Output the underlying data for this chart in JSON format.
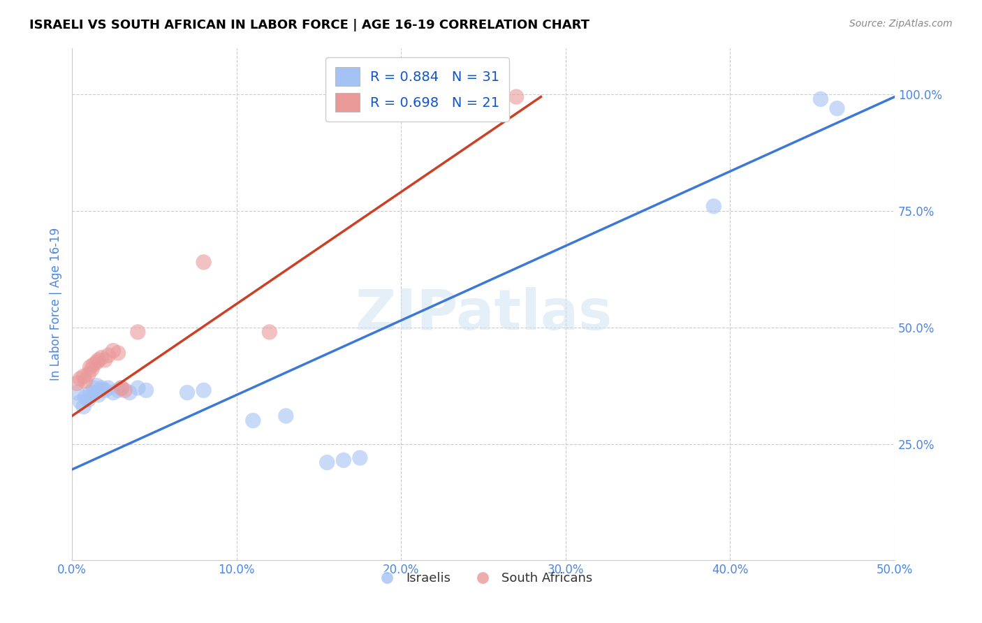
{
  "title": "ISRAELI VS SOUTH AFRICAN IN LABOR FORCE | AGE 16-19 CORRELATION CHART",
  "source": "Source: ZipAtlas.com",
  "ylabel": "In Labor Force | Age 16-19",
  "watermark": "ZIPatlas",
  "xlim": [
    0.0,
    0.5
  ],
  "ylim": [
    0.0,
    1.1
  ],
  "xticks": [
    0.0,
    0.1,
    0.2,
    0.3,
    0.4,
    0.5
  ],
  "yticks": [
    0.25,
    0.5,
    0.75,
    1.0
  ],
  "ytick_labels": [
    "25.0%",
    "50.0%",
    "75.0%",
    "100.0%"
  ],
  "xtick_labels": [
    "0.0%",
    "10.0%",
    "20.0%",
    "30.0%",
    "40.0%",
    "50.0%"
  ],
  "blue_R": 0.884,
  "blue_N": 31,
  "pink_R": 0.698,
  "pink_N": 21,
  "blue_color": "#a4c2f4",
  "pink_color": "#ea9999",
  "blue_line_color": "#3c78d8",
  "pink_line_color": "#cc4125",
  "legend_R_color": "#1155cc",
  "grid_color": "#cccccc",
  "background_color": "#ffffff",
  "title_color": "#000000",
  "axis_label_color": "#4a86e8",
  "israelis_points": [
    [
      0.003,
      0.36
    ],
    [
      0.005,
      0.34
    ],
    [
      0.007,
      0.33
    ],
    [
      0.008,
      0.35
    ],
    [
      0.01,
      0.345
    ],
    [
      0.011,
      0.36
    ],
    [
      0.012,
      0.355
    ],
    [
      0.013,
      0.37
    ],
    [
      0.014,
      0.36
    ],
    [
      0.015,
      0.375
    ],
    [
      0.016,
      0.355
    ],
    [
      0.017,
      0.365
    ],
    [
      0.018,
      0.37
    ],
    [
      0.02,
      0.365
    ],
    [
      0.022,
      0.37
    ],
    [
      0.025,
      0.36
    ],
    [
      0.028,
      0.365
    ],
    [
      0.03,
      0.37
    ],
    [
      0.035,
      0.36
    ],
    [
      0.04,
      0.37
    ],
    [
      0.045,
      0.365
    ],
    [
      0.07,
      0.36
    ],
    [
      0.08,
      0.365
    ],
    [
      0.11,
      0.3
    ],
    [
      0.13,
      0.31
    ],
    [
      0.155,
      0.21
    ],
    [
      0.165,
      0.215
    ],
    [
      0.175,
      0.22
    ],
    [
      0.39,
      0.76
    ],
    [
      0.455,
      0.99
    ],
    [
      0.465,
      0.97
    ]
  ],
  "southafrican_points": [
    [
      0.003,
      0.38
    ],
    [
      0.005,
      0.39
    ],
    [
      0.007,
      0.395
    ],
    [
      0.008,
      0.385
    ],
    [
      0.01,
      0.4
    ],
    [
      0.011,
      0.415
    ],
    [
      0.012,
      0.41
    ],
    [
      0.013,
      0.42
    ],
    [
      0.015,
      0.425
    ],
    [
      0.016,
      0.43
    ],
    [
      0.018,
      0.435
    ],
    [
      0.02,
      0.43
    ],
    [
      0.022,
      0.44
    ],
    [
      0.025,
      0.45
    ],
    [
      0.028,
      0.445
    ],
    [
      0.03,
      0.37
    ],
    [
      0.032,
      0.365
    ],
    [
      0.04,
      0.49
    ],
    [
      0.08,
      0.64
    ],
    [
      0.12,
      0.49
    ],
    [
      0.27,
      0.995
    ]
  ],
  "blue_line_x": [
    0.0,
    0.5
  ],
  "blue_line_y": [
    0.195,
    0.995
  ],
  "pink_line_x": [
    0.0,
    0.285
  ],
  "pink_line_y": [
    0.31,
    0.995
  ],
  "figsize": [
    14.06,
    8.92
  ],
  "dpi": 100
}
